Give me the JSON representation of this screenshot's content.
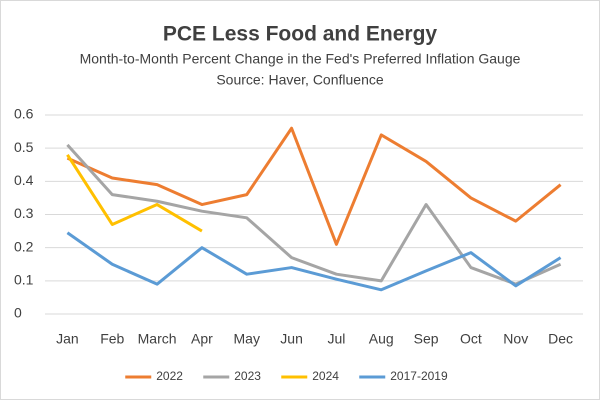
{
  "chart_data": {
    "type": "line",
    "title": "PCE Less Food and Energy",
    "subtitle": "Month-to-Month Percent Change in the Fed's Preferred Inflation Gauge",
    "source": "Source: Haver, Confluence",
    "categories": [
      "Jan",
      "Feb",
      "March",
      "Apr",
      "May",
      "Jun",
      "Jul",
      "Aug",
      "Sep",
      "Oct",
      "Nov",
      "Dec"
    ],
    "series": [
      {
        "name": "2022",
        "color": "#ed7d31",
        "values": [
          0.47,
          0.41,
          0.39,
          0.33,
          0.36,
          0.56,
          0.21,
          0.54,
          0.46,
          0.35,
          0.28,
          0.39
        ]
      },
      {
        "name": "2023",
        "color": "#a5a5a5",
        "values": [
          0.51,
          0.36,
          0.34,
          0.31,
          0.29,
          0.17,
          0.12,
          0.1,
          0.33,
          0.14,
          0.09,
          0.15
        ]
      },
      {
        "name": "2024",
        "color": "#ffc000",
        "values": [
          0.48,
          0.27,
          0.33,
          0.25,
          null,
          null,
          null,
          null,
          null,
          null,
          null,
          null
        ]
      },
      {
        "name": "2017-2019",
        "color": "#5b9bd5",
        "values": [
          0.245,
          0.15,
          0.09,
          0.2,
          0.12,
          0.14,
          0.105,
          0.073,
          0.13,
          0.185,
          0.085,
          0.17
        ]
      }
    ],
    "ylim": [
      0,
      0.6
    ],
    "yticks": [
      0,
      0.1,
      0.2,
      0.3,
      0.4,
      0.5,
      0.6
    ],
    "grid": true,
    "legend": "bottom"
  }
}
